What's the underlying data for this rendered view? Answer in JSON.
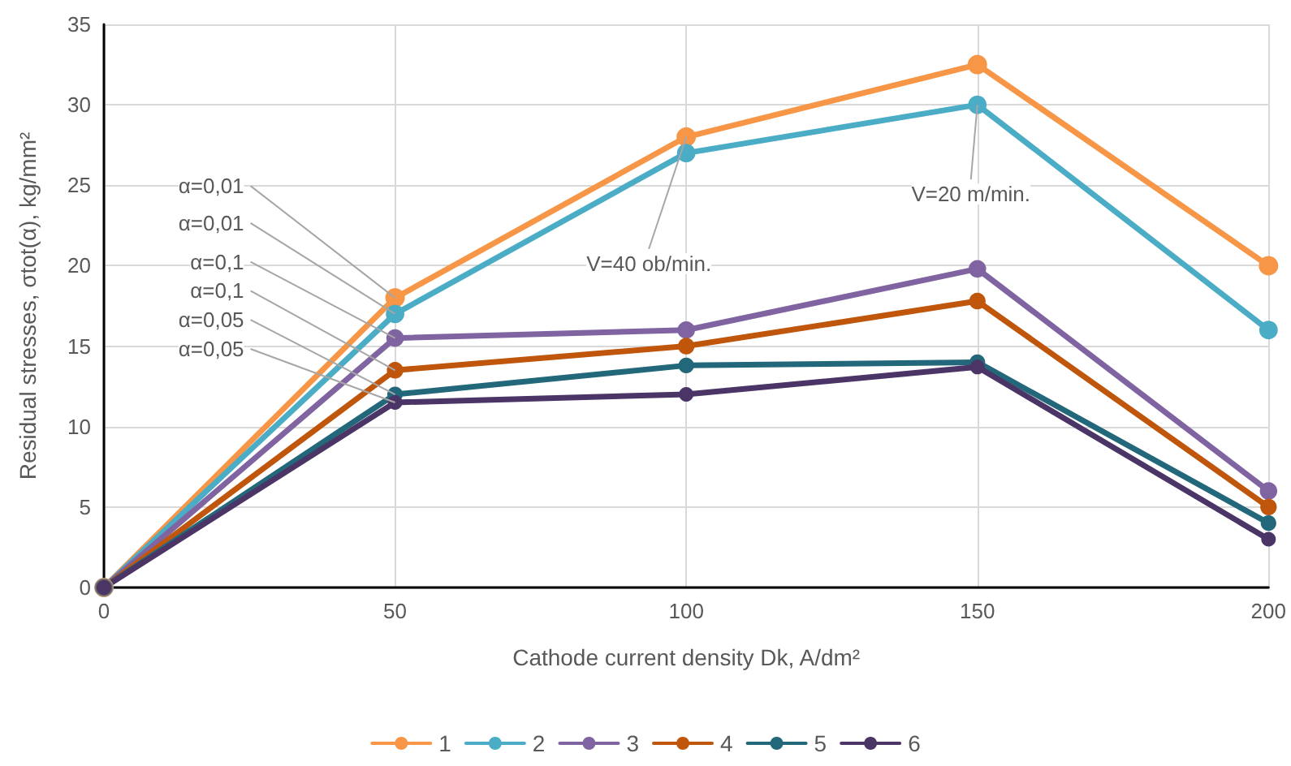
{
  "chart_data": {
    "type": "line",
    "xlabel": "Cathode current density Dk, A/dm²",
    "ylabel": "Residual stresses, σtot(α), kg/mm²",
    "x": [
      0,
      50,
      100,
      150,
      200
    ],
    "xlim": [
      0,
      200
    ],
    "xticks": [
      0,
      50,
      100,
      150,
      200
    ],
    "ylim": [
      0,
      35
    ],
    "yticks": [
      0,
      5,
      10,
      15,
      20,
      25,
      30,
      35
    ],
    "grid": true,
    "legend": "bottom",
    "marker": "circle",
    "line_style": "solid",
    "series": [
      {
        "name": "1",
        "color": "#f79646",
        "values": [
          0,
          18,
          28,
          32.5,
          20
        ]
      },
      {
        "name": "2",
        "color": "#4bacc6",
        "values": [
          0,
          17,
          27,
          30,
          16
        ]
      },
      {
        "name": "3",
        "color": "#8064a2",
        "values": [
          0,
          15.5,
          16,
          19.8,
          6
        ]
      },
      {
        "name": "4",
        "color": "#c0560b",
        "values": [
          0,
          13.5,
          15,
          17.8,
          5
        ]
      },
      {
        "name": "5",
        "color": "#23687a",
        "values": [
          0,
          12,
          13.8,
          14,
          4
        ]
      },
      {
        "name": "6",
        "color": "#4a3566",
        "values": [
          0,
          11.5,
          12,
          13.7,
          3
        ]
      }
    ],
    "annotations": [
      {
        "text": "α=0,01",
        "x": 50,
        "y": 18
      },
      {
        "text": "α=0,01",
        "x": 50,
        "y": 17
      },
      {
        "text": "α=0,1",
        "x": 50,
        "y": 15.5
      },
      {
        "text": "α=0,1",
        "x": 50,
        "y": 13.5
      },
      {
        "text": "α=0,05",
        "x": 50,
        "y": 12
      },
      {
        "text": "α=0,05",
        "x": 50,
        "y": 11.5
      },
      {
        "text": "V=40 ob/min.",
        "x": 100,
        "y": 28
      },
      {
        "text": "V=20 m/min.",
        "x": 150,
        "y": 30
      }
    ]
  }
}
